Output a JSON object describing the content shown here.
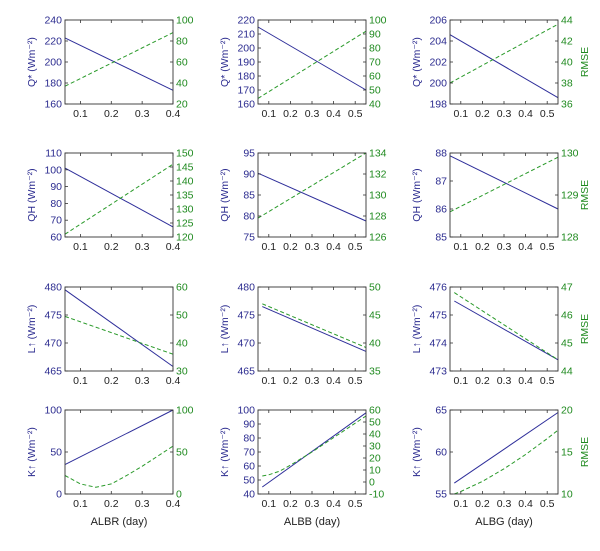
{
  "colors": {
    "left": "#2e2e9a",
    "right": "#2a9a2a",
    "axis": "#333333"
  },
  "chart_data": [
    {
      "type": "line",
      "xlim": [
        0.05,
        0.4
      ],
      "xticks": [
        0.1,
        0.2,
        0.3,
        0.4
      ],
      "xtick_labels": [
        "0.1",
        "0.2",
        "0.3",
        "0.4"
      ],
      "ylim_left": [
        160,
        240
      ],
      "yticks_left": [
        "160",
        "180",
        "200",
        "220",
        "240"
      ],
      "ylabel": "Q* (Wm⁻²)",
      "ylim_right": [
        20,
        100
      ],
      "yticks_right": [
        "20",
        "40",
        "60",
        "80",
        "100"
      ],
      "ylabel_right": "",
      "xlabel": "",
      "series": [
        {
          "axis": "left",
          "style": "solid",
          "x": [
            0.05,
            0.4
          ],
          "y": [
            223,
            173
          ]
        },
        {
          "axis": "right",
          "style": "dashed",
          "x": [
            0.05,
            0.4
          ],
          "y": [
            37,
            88
          ]
        }
      ]
    },
    {
      "type": "line",
      "xlim": [
        0.05,
        0.55
      ],
      "xticks": [
        0.1,
        0.2,
        0.3,
        0.4,
        0.5
      ],
      "xtick_labels": [
        "0.1",
        "0.2",
        "0.3",
        "0.4",
        "0.5"
      ],
      "ylim_left": [
        160,
        220
      ],
      "yticks_left": [
        "160",
        "170",
        "180",
        "190",
        "200",
        "210",
        "220"
      ],
      "ylabel": "Q* (Wm⁻²)",
      "ylim_right": [
        40,
        100
      ],
      "yticks_right": [
        "40",
        "50",
        "60",
        "70",
        "80",
        "90",
        "100"
      ],
      "ylabel_right": "",
      "xlabel": "",
      "series": [
        {
          "axis": "left",
          "style": "solid",
          "x": [
            0.05,
            0.55
          ],
          "y": [
            215,
            170
          ]
        },
        {
          "axis": "right",
          "style": "dashed",
          "x": [
            0.05,
            0.55
          ],
          "y": [
            44,
            92
          ]
        }
      ]
    },
    {
      "type": "line",
      "xlim": [
        0.05,
        0.55
      ],
      "xticks": [
        0.1,
        0.2,
        0.3,
        0.4,
        0.5
      ],
      "xtick_labels": [
        "0.1",
        "0.2",
        "0.3",
        "0.4",
        "0.5"
      ],
      "ylim_left": [
        198,
        206
      ],
      "yticks_left": [
        "198",
        "200",
        "202",
        "204",
        "206"
      ],
      "ylabel": "Q* (Wm⁻²)",
      "ylim_right": [
        36,
        44
      ],
      "yticks_right": [
        "36",
        "38",
        "40",
        "42",
        "44"
      ],
      "ylabel_right": "RMSE",
      "xlabel": "",
      "series": [
        {
          "axis": "left",
          "style": "solid",
          "x": [
            0.05,
            0.55
          ],
          "y": [
            204.6,
            198.6
          ]
        },
        {
          "axis": "right",
          "style": "dashed",
          "x": [
            0.05,
            0.55
          ],
          "y": [
            38,
            43.6
          ]
        }
      ]
    },
    {
      "type": "line",
      "xlim": [
        0.05,
        0.4
      ],
      "xticks": [
        0.1,
        0.2,
        0.3,
        0.4
      ],
      "xtick_labels": [
        "0.1",
        "0.2",
        "0.3",
        "0.4"
      ],
      "ylim_left": [
        60,
        110
      ],
      "yticks_left": [
        "60",
        "70",
        "80",
        "90",
        "100",
        "110"
      ],
      "ylabel": "QH (Wm⁻²)",
      "ylim_right": [
        120,
        150
      ],
      "yticks_right": [
        "120",
        "125",
        "130",
        "135",
        "140",
        "145",
        "150"
      ],
      "ylabel_right": "",
      "xlabel": "",
      "series": [
        {
          "axis": "left",
          "style": "solid",
          "x": [
            0.05,
            0.4
          ],
          "y": [
            101,
            66
          ]
        },
        {
          "axis": "right",
          "style": "dashed",
          "x": [
            0.05,
            0.4
          ],
          "y": [
            121,
            146
          ]
        }
      ]
    },
    {
      "type": "line",
      "xlim": [
        0.05,
        0.55
      ],
      "xticks": [
        0.1,
        0.2,
        0.3,
        0.4,
        0.5
      ],
      "xtick_labels": [
        "0.1",
        "0.2",
        "0.3",
        "0.4",
        "0.5"
      ],
      "ylim_left": [
        75,
        95
      ],
      "yticks_left": [
        "75",
        "80",
        "85",
        "90",
        "95"
      ],
      "ylabel": "QH (Wm⁻²)",
      "ylim_right": [
        126,
        134
      ],
      "yticks_right": [
        "126",
        "128",
        "130",
        "132",
        "134"
      ],
      "ylabel_right": "",
      "xlabel": "",
      "series": [
        {
          "axis": "left",
          "style": "solid",
          "x": [
            0.05,
            0.55
          ],
          "y": [
            90.2,
            78.8
          ]
        },
        {
          "axis": "right",
          "style": "dashed",
          "x": [
            0.05,
            0.55
          ],
          "y": [
            127.8,
            134
          ]
        }
      ]
    },
    {
      "type": "line",
      "xlim": [
        0.05,
        0.55
      ],
      "xticks": [
        0.1,
        0.2,
        0.3,
        0.4,
        0.5
      ],
      "xtick_labels": [
        "0.1",
        "0.2",
        "0.3",
        "0.4",
        "0.5"
      ],
      "ylim_left": [
        85,
        88
      ],
      "yticks_left": [
        "85",
        "86",
        "87",
        "88"
      ],
      "ylabel": "QH (Wm⁻²)",
      "ylim_right": [
        128,
        130
      ],
      "yticks_right": [
        "128",
        "129",
        "130"
      ],
      "ylabel_right": "RMSE",
      "xlabel": "",
      "series": [
        {
          "axis": "left",
          "style": "solid",
          "x": [
            0.05,
            0.55
          ],
          "y": [
            87.9,
            86
          ]
        },
        {
          "axis": "right",
          "style": "dashed",
          "x": [
            0.05,
            0.55
          ],
          "y": [
            128.6,
            129.9
          ]
        }
      ]
    },
    {
      "type": "line",
      "xlim": [
        0.05,
        0.4
      ],
      "xticks": [
        0.1,
        0.2,
        0.3,
        0.4
      ],
      "xtick_labels": [
        "0.1",
        "0.2",
        "0.3",
        "0.4"
      ],
      "ylim_left": [
        465,
        480
      ],
      "yticks_left": [
        "465",
        "470",
        "475",
        "480"
      ],
      "ylabel": "L↑ (Wm⁻²)",
      "ylim_right": [
        30,
        60
      ],
      "yticks_right": [
        "30",
        "40",
        "50",
        "60"
      ],
      "ylabel_right": "",
      "xlabel": "",
      "series": [
        {
          "axis": "left",
          "style": "solid",
          "x": [
            0.05,
            0.4
          ],
          "y": [
            479.5,
            465.8
          ]
        },
        {
          "axis": "right",
          "style": "dashed",
          "x": [
            0.05,
            0.4
          ],
          "y": [
            49.5,
            36
          ]
        }
      ]
    },
    {
      "type": "line",
      "xlim": [
        0.05,
        0.55
      ],
      "xticks": [
        0.1,
        0.2,
        0.3,
        0.4,
        0.5
      ],
      "xtick_labels": [
        "0.1",
        "0.2",
        "0.3",
        "0.4",
        "0.5"
      ],
      "ylim_left": [
        465,
        480
      ],
      "yticks_left": [
        "465",
        "470",
        "475",
        "480"
      ],
      "ylabel": "L↑ (Wm⁻²)",
      "ylim_right": [
        35,
        50
      ],
      "yticks_right": [
        "35",
        "40",
        "45",
        "50"
      ],
      "ylabel_right": "",
      "xlabel": "",
      "series": [
        {
          "axis": "left",
          "style": "solid",
          "x": [
            0.07,
            0.55
          ],
          "y": [
            476.5,
            468.5
          ]
        },
        {
          "axis": "right",
          "style": "dashed",
          "x": [
            0.07,
            0.55
          ],
          "y": [
            47,
            39.2
          ]
        }
      ]
    },
    {
      "type": "line",
      "xlim": [
        0.05,
        0.55
      ],
      "xticks": [
        0.1,
        0.2,
        0.3,
        0.4,
        0.5
      ],
      "xtick_labels": [
        "0.1",
        "0.2",
        "0.3",
        "0.4",
        "0.5"
      ],
      "ylim_left": [
        473,
        476
      ],
      "yticks_left": [
        "473",
        "474",
        "475",
        "476"
      ],
      "ylabel": "L↑ (Wm⁻²)",
      "ylim_right": [
        44,
        47
      ],
      "yticks_right": [
        "44",
        "45",
        "46",
        "47"
      ],
      "ylabel_right": "RMSE",
      "xlabel": "",
      "series": [
        {
          "axis": "left",
          "style": "solid",
          "x": [
            0.07,
            0.55
          ],
          "y": [
            475.5,
            473.4
          ]
        },
        {
          "axis": "right",
          "style": "dashed",
          "x": [
            0.07,
            0.55
          ],
          "y": [
            46.8,
            44.4
          ]
        }
      ]
    },
    {
      "type": "line",
      "xlim": [
        0.05,
        0.4
      ],
      "xticks": [
        0.1,
        0.2,
        0.3,
        0.4
      ],
      "xtick_labels": [
        "0.1",
        "0.2",
        "0.3",
        "0.4"
      ],
      "ylim_left": [
        0,
        100
      ],
      "yticks_left": [
        "0",
        "50",
        "100"
      ],
      "ylabel": "K↑ (Wm⁻²)",
      "ylim_right": [
        0,
        100
      ],
      "yticks_right": [
        "0",
        "50",
        "100"
      ],
      "ylabel_right": "",
      "xlabel": "ALBR (day)",
      "series": [
        {
          "axis": "left",
          "style": "solid",
          "x": [
            0.05,
            0.4
          ],
          "y": [
            35,
            100
          ]
        },
        {
          "axis": "right",
          "style": "dashed",
          "x": [
            0.05,
            0.1,
            0.15,
            0.2,
            0.25,
            0.3,
            0.35,
            0.4
          ],
          "y": [
            22,
            12,
            8,
            12,
            22,
            33,
            45,
            57
          ]
        }
      ]
    },
    {
      "type": "line",
      "xlim": [
        0.05,
        0.55
      ],
      "xticks": [
        0.1,
        0.2,
        0.3,
        0.4,
        0.5
      ],
      "xtick_labels": [
        "0.1",
        "0.2",
        "0.3",
        "0.4",
        "0.5"
      ],
      "ylim_left": [
        40,
        100
      ],
      "yticks_left": [
        "40",
        "50",
        "60",
        "70",
        "80",
        "90",
        "100"
      ],
      "ylabel": "K↑ (Wm⁻²)",
      "ylim_right": [
        -10,
        60
      ],
      "yticks_right": [
        "-10",
        "0",
        "10",
        "20",
        "30",
        "40",
        "50",
        "60"
      ],
      "ylabel_right": "",
      "xlabel": "ALBB (day)",
      "series": [
        {
          "axis": "left",
          "style": "solid",
          "x": [
            0.07,
            0.55
          ],
          "y": [
            45,
            98
          ]
        },
        {
          "axis": "right",
          "style": "dashed",
          "x": [
            0.07,
            0.1,
            0.15,
            0.2,
            0.3,
            0.4,
            0.5,
            0.55
          ],
          "y": [
            5,
            6,
            9,
            14,
            25,
            37,
            49,
            55
          ]
        }
      ]
    },
    {
      "type": "line",
      "xlim": [
        0.05,
        0.55
      ],
      "xticks": [
        0.1,
        0.2,
        0.3,
        0.4,
        0.5
      ],
      "xtick_labels": [
        "0.1",
        "0.2",
        "0.3",
        "0.4",
        "0.5"
      ],
      "ylim_left": [
        55,
        65
      ],
      "yticks_left": [
        "55",
        "60",
        "65"
      ],
      "ylabel": "K↑ (Wm⁻²)",
      "ylim_right": [
        10,
        20
      ],
      "yticks_right": [
        "10",
        "15",
        "20"
      ],
      "ylabel_right": "RMSE",
      "xlabel": "ALBG (day)",
      "series": [
        {
          "axis": "left",
          "style": "solid",
          "x": [
            0.07,
            0.55
          ],
          "y": [
            56.3,
            64.7
          ]
        },
        {
          "axis": "right",
          "style": "dashed",
          "x": [
            0.07,
            0.1,
            0.2,
            0.3,
            0.4,
            0.5,
            0.55
          ],
          "y": [
            10,
            10.3,
            11.5,
            13,
            14.7,
            16.6,
            17.6
          ]
        }
      ]
    }
  ]
}
